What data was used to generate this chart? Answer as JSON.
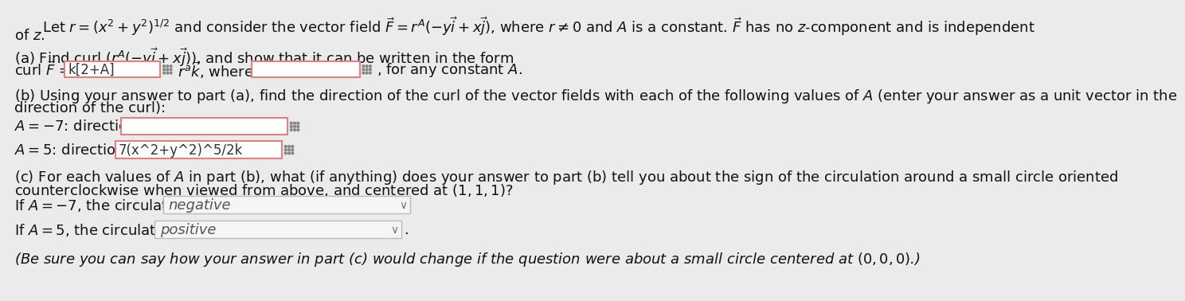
{
  "bg_color": "#ebebeb",
  "text_color": "#111111",
  "input_bg": "#ffffff",
  "input_border_color": "#e08080",
  "grid_dot_color": "#888888",
  "dropdown_bg": "#f5f5f5",
  "dropdown_border": "#bbbbbb",
  "dropdown_text_color": "#555555",
  "main_text_color": "#111111",
  "title_line1": "Let $r = (x^2 + y^2)^{1/2}$ and consider the vector field $\\vec{F} = r^A(-y\\vec{i} + x\\vec{j})$, where $r \\neq 0$ and $A$ is a constant. $\\vec{F}$ has no $z$-component and is independent",
  "title_line2": "of $z$.",
  "part_a_line1": "(a) Find curl $(r^A(-y\\vec{i} + x\\vec{j}))$, and show that it can be written in the form",
  "curl_label": "curl $\\vec{F}$ =",
  "input1_text": "k[2+A]",
  "mid_text": "$r^a\\vec{k}$, where $a$ =",
  "end_text": ", for any constant $A$.",
  "part_b_line1": "(b) Using your answer to part (a), find the direction of the curl of the vector fields with each of the following values of $A$ (enter your answer as a unit vector in the",
  "part_b_line2": "direction of the curl):",
  "b_a1_label": "$A = -7$: direction =",
  "b_a1_input": "",
  "b_a2_label": "$A = 5$: direction =",
  "b_a2_input": "7(x^2+y^2)^5/2k",
  "part_c_line1": "(c) For each values of $A$ in part (b), what (if anything) does your answer to part (b) tell you about the sign of the circulation around a small circle oriented",
  "part_c_line2": "counterclockwise when viewed from above, and centered at $(1, 1, 1)$?",
  "c_a1_label": "If $A = -7$, the circulation is",
  "c_a1_text": "negative",
  "c_a2_label": "If $A = 5$, the circulation is",
  "c_a2_text": "positive",
  "note_text": "(Be sure you can say how your answer in part (c) would change if the question were about a small circle centered at $(0, 0, 0)$.)"
}
